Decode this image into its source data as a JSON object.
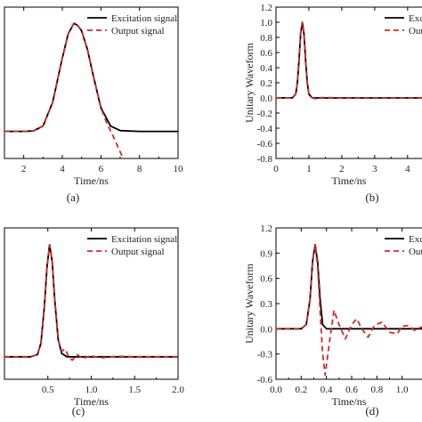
{
  "chart_data": [
    {
      "id": "a",
      "type": "line",
      "panel_label": "(a)",
      "xlabel": "Time/ns",
      "ylabel": "",
      "xlim": [
        1,
        10
      ],
      "ylim": [
        -0.25,
        1.15
      ],
      "xticks": [
        2,
        4,
        6,
        8,
        10
      ],
      "xtick_labels": [
        "2",
        "4",
        "6",
        "8",
        "10"
      ],
      "yticks": [],
      "ytick_labels": [],
      "legend": {
        "position": "top-right",
        "entries": [
          "Excitation signal",
          "Output signal"
        ]
      },
      "series": [
        {
          "name": "Excitation signal",
          "color": "#000000",
          "style": "solid",
          "x": [
            1,
            2,
            2.5,
            3,
            3.5,
            4,
            4.3,
            4.6,
            4.8,
            5.0,
            5.3,
            5.6,
            6.0,
            6.5,
            7.0,
            8.0,
            9.0,
            10.0
          ],
          "y": [
            0,
            0,
            0.005,
            0.05,
            0.27,
            0.68,
            0.9,
            1.0,
            0.98,
            0.93,
            0.76,
            0.52,
            0.22,
            0.05,
            0.008,
            0,
            0,
            0
          ]
        },
        {
          "name": "Output signal",
          "color": "#d62728",
          "style": "dashed",
          "x": [
            1,
            2,
            2.5,
            3,
            3.5,
            4,
            4.3,
            4.6,
            4.8,
            5.0,
            5.3,
            5.6,
            6.0,
            6.3,
            6.6,
            6.9,
            7.1
          ],
          "y": [
            0,
            0,
            0.005,
            0.05,
            0.27,
            0.68,
            0.9,
            1.0,
            0.98,
            0.93,
            0.76,
            0.52,
            0.22,
            0.08,
            -0.03,
            -0.15,
            -0.23
          ]
        }
      ]
    },
    {
      "id": "b",
      "type": "line",
      "panel_label": "(b)",
      "xlabel": "Time/ns",
      "ylabel": "Unitary Waveform",
      "xlim": [
        0,
        4.6
      ],
      "ylim": [
        -0.8,
        1.2
      ],
      "xticks": [
        0,
        1,
        2,
        3,
        4
      ],
      "xtick_labels": [
        "0",
        "1",
        "2",
        "3",
        "4"
      ],
      "yticks": [
        -0.8,
        -0.6,
        -0.4,
        -0.2,
        0.0,
        0.2,
        0.4,
        0.6,
        0.8,
        1.0,
        1.2
      ],
      "ytick_labels": [
        "-0.8",
        "-0.6",
        "-0.4",
        "-0.2",
        "0.0",
        "0.2",
        "0.4",
        "0.6",
        "0.8",
        "1.0",
        "1.2"
      ],
      "legend": {
        "position": "top-right",
        "entries": [
          "Excitation signal",
          "Output signal"
        ]
      },
      "series": [
        {
          "name": "Excitation signal",
          "color": "#000000",
          "style": "solid",
          "x": [
            0,
            0.5,
            0.6,
            0.65,
            0.7,
            0.75,
            0.8,
            0.85,
            0.9,
            0.95,
            1.0,
            1.1,
            1.2,
            4.6
          ],
          "y": [
            0,
            0.002,
            0.05,
            0.2,
            0.5,
            0.85,
            1.0,
            0.85,
            0.5,
            0.2,
            0.05,
            0.002,
            0,
            0
          ]
        },
        {
          "name": "Output signal",
          "color": "#d62728",
          "style": "dashed",
          "x": [
            0,
            0.5,
            0.6,
            0.65,
            0.7,
            0.75,
            0.8,
            0.85,
            0.9,
            0.95,
            1.0,
            1.1,
            1.2,
            1.4,
            2.0,
            3.0,
            4.6
          ],
          "y": [
            0,
            0.002,
            0.05,
            0.2,
            0.5,
            0.85,
            1.0,
            0.85,
            0.5,
            0.2,
            0.05,
            0.002,
            -0.01,
            0.005,
            0,
            0,
            0
          ]
        }
      ]
    },
    {
      "id": "c",
      "type": "line",
      "panel_label": "(c)",
      "xlabel": "Time/ns",
      "ylabel": "",
      "xlim": [
        0.0,
        2.0
      ],
      "ylim": [
        -0.2,
        1.15
      ],
      "xticks": [
        0.5,
        1.0,
        1.5,
        2.0
      ],
      "xtick_labels": [
        "0.5",
        "1.0",
        "1.5",
        "2.0"
      ],
      "yticks": [],
      "ytick_labels": [],
      "legend": {
        "position": "top-right",
        "entries": [
          "Excitation signal",
          "Output signal"
        ]
      },
      "series": [
        {
          "name": "Excitation signal",
          "color": "#000000",
          "style": "solid",
          "x": [
            0.0,
            0.3,
            0.38,
            0.42,
            0.46,
            0.49,
            0.52,
            0.55,
            0.58,
            0.62,
            0.66,
            0.72,
            0.8,
            2.0
          ],
          "y": [
            0,
            0,
            0.02,
            0.12,
            0.45,
            0.8,
            1.0,
            0.85,
            0.5,
            0.15,
            0.03,
            0,
            0,
            0
          ]
        },
        {
          "name": "Output signal",
          "color": "#d62728",
          "style": "dashed",
          "x": [
            0.0,
            0.3,
            0.38,
            0.42,
            0.46,
            0.49,
            0.52,
            0.55,
            0.58,
            0.62,
            0.66,
            0.7,
            0.74,
            0.78,
            0.84,
            0.9,
            1.0,
            1.1,
            1.3,
            1.5,
            2.0
          ],
          "y": [
            0,
            0,
            0.02,
            0.12,
            0.45,
            0.8,
            1.0,
            0.85,
            0.5,
            0.15,
            0.05,
            0.07,
            0.0,
            -0.03,
            0.02,
            -0.015,
            0.01,
            -0.01,
            0.005,
            0,
            0
          ]
        }
      ]
    },
    {
      "id": "d",
      "type": "line",
      "panel_label": "(d)",
      "xlabel": "Time/ns",
      "ylabel": "Unitary Waveform",
      "xlim": [
        0.0,
        1.2
      ],
      "ylim": [
        -0.6,
        1.2
      ],
      "xticks": [
        0.0,
        0.2,
        0.4,
        0.6,
        0.8,
        1.0
      ],
      "xtick_labels": [
        "0.0",
        "0.2",
        "0.4",
        "0.6",
        "0.8",
        "1.0"
      ],
      "yticks": [
        -0.6,
        -0.3,
        0.0,
        0.3,
        0.6,
        0.9,
        1.2
      ],
      "ytick_labels": [
        "-0.6",
        "-0.3",
        "0.0",
        "0.3",
        "0.6",
        "0.9",
        "1.2"
      ],
      "legend": {
        "position": "top-right",
        "entries": [
          "Excitation signal",
          "Output signal"
        ]
      },
      "series": [
        {
          "name": "Excitation signal",
          "color": "#000000",
          "style": "solid",
          "x": [
            0.0,
            0.2,
            0.24,
            0.27,
            0.29,
            0.31,
            0.33,
            0.35,
            0.37,
            0.4,
            0.45,
            1.2
          ],
          "y": [
            0,
            0,
            0.05,
            0.35,
            0.8,
            1.0,
            0.8,
            0.35,
            0.05,
            0,
            0,
            0
          ]
        },
        {
          "name": "Output signal",
          "color": "#d62728",
          "style": "dashed",
          "x": [
            0.0,
            0.2,
            0.24,
            0.27,
            0.29,
            0.31,
            0.33,
            0.35,
            0.37,
            0.39,
            0.42,
            0.46,
            0.5,
            0.55,
            0.6,
            0.64,
            0.68,
            0.73,
            0.78,
            0.84,
            0.9,
            0.96,
            1.0,
            1.05,
            1.1,
            1.15,
            1.2
          ],
          "y": [
            0,
            0,
            0.05,
            0.35,
            0.8,
            1.0,
            0.75,
            0.2,
            -0.3,
            -0.55,
            -0.2,
            0.22,
            0.05,
            -0.12,
            0.05,
            0.12,
            0.0,
            -0.1,
            0.04,
            0.08,
            -0.04,
            -0.06,
            0.03,
            0.04,
            -0.02,
            0.02,
            0.0
          ]
        }
      ]
    }
  ]
}
